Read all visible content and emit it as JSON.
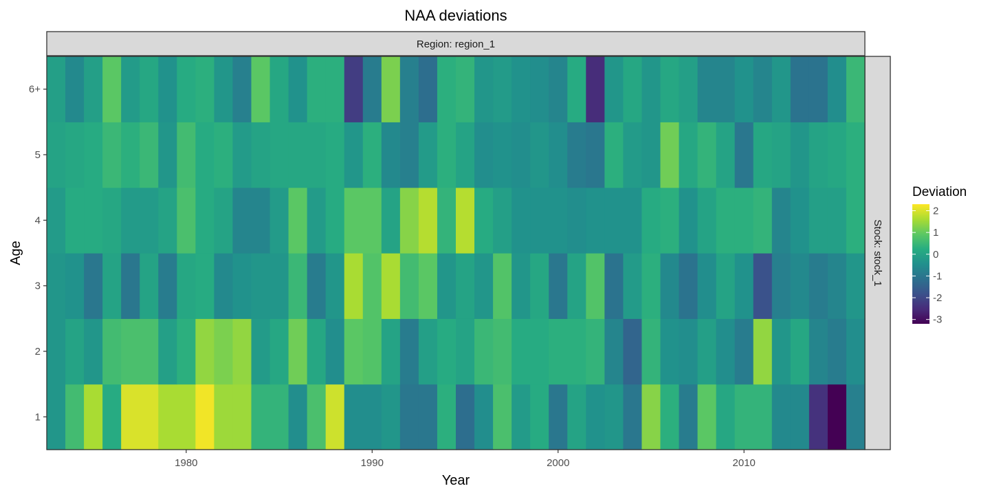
{
  "chart_data": {
    "type": "heatmap",
    "title": "NAA deviations",
    "xlabel": "Year",
    "ylabel": "Age",
    "facet_top": "Region: region_1",
    "facet_right": "Stock: stock_1",
    "legend_title": "Deviation",
    "legend_ticks": [
      2,
      1,
      0,
      -1,
      -2,
      -3
    ],
    "color_range": [
      -3.2,
      2.3
    ],
    "colormap": "viridis",
    "x_ticks": [
      1980,
      1990,
      2000,
      2010
    ],
    "y_categories": [
      "1",
      "2",
      "3",
      "4",
      "5",
      "6+"
    ],
    "years": [
      1973,
      1974,
      1975,
      1976,
      1977,
      1978,
      1979,
      1980,
      1981,
      1982,
      1983,
      1984,
      1985,
      1986,
      1987,
      1988,
      1989,
      1990,
      1991,
      1992,
      1993,
      1994,
      1995,
      1996,
      1997,
      1998,
      1999,
      2000,
      2001,
      2002,
      2003,
      2004,
      2005,
      2006,
      2007,
      2008,
      2009,
      2010,
      2011,
      2012,
      2013,
      2014,
      2015,
      2016
    ],
    "values": {
      "1": [
        -0.3,
        0.6,
        1.6,
        0.2,
        2.0,
        2.0,
        1.6,
        1.6,
        2.2,
        1.5,
        1.5,
        0.4,
        0.4,
        -0.5,
        0.7,
        1.9,
        -0.5,
        -0.5,
        -0.3,
        -1.0,
        -1.0,
        0.3,
        -1.2,
        -0.5,
        0.7,
        -0.2,
        0.2,
        -1.0,
        0.0,
        -0.4,
        -0.3,
        -1.0,
        1.3,
        0.3,
        -0.9,
        0.9,
        0.1,
        0.4,
        0.4,
        -0.6,
        -0.6,
        -2.4,
        -3.2,
        -0.8
      ],
      "2": [
        -0.3,
        0.0,
        -0.3,
        0.6,
        0.7,
        0.7,
        -0.1,
        0.3,
        1.4,
        1.2,
        1.4,
        -0.2,
        0.1,
        1.1,
        0.1,
        -0.5,
        0.9,
        0.8,
        0.0,
        -0.9,
        -0.1,
        0.2,
        0.0,
        0.5,
        0.6,
        0.2,
        0.2,
        0.3,
        0.3,
        0.4,
        -0.7,
        -1.4,
        0.4,
        -0.4,
        -0.5,
        -0.1,
        -0.5,
        -0.9,
        1.4,
        -0.3,
        0.1,
        -0.7,
        -0.9,
        -0.5
      ],
      "3": [
        -0.3,
        -0.4,
        -1.0,
        0.0,
        -1.0,
        0.0,
        -0.9,
        0.1,
        0.2,
        -0.6,
        -0.4,
        -0.3,
        -0.3,
        0.5,
        -0.9,
        -0.3,
        1.6,
        0.8,
        1.6,
        0.6,
        0.9,
        -0.3,
        0.0,
        -0.3,
        0.8,
        -0.3,
        0.1,
        -1.0,
        0.0,
        0.8,
        -1.1,
        -0.2,
        0.3,
        -0.6,
        -1.1,
        -0.5,
        0.0,
        -0.4,
        -1.8,
        -0.8,
        -0.6,
        -0.9,
        -0.7,
        -0.3
      ],
      "4": [
        -0.2,
        0.2,
        0.2,
        0.1,
        -0.2,
        -0.2,
        0.0,
        0.7,
        0.2,
        0.0,
        -0.7,
        -0.7,
        -0.2,
        0.9,
        -0.2,
        0.2,
        0.9,
        0.9,
        0.0,
        1.3,
        1.7,
        0.4,
        1.7,
        0.2,
        -0.1,
        -0.4,
        -0.4,
        -0.4,
        -0.5,
        -0.4,
        -0.4,
        -0.4,
        0.2,
        0.3,
        -0.4,
        0.0,
        0.3,
        0.3,
        0.4,
        -0.7,
        -0.4,
        -0.1,
        -0.1,
        0.3
      ],
      "5": [
        0.0,
        0.1,
        0.2,
        0.5,
        0.3,
        0.5,
        -0.3,
        0.6,
        0.2,
        0.3,
        -0.2,
        0.0,
        0.1,
        0.1,
        0.1,
        0.2,
        -0.3,
        0.3,
        -0.6,
        -0.8,
        -0.2,
        0.3,
        0.0,
        -0.5,
        -0.4,
        -0.5,
        -0.3,
        -0.5,
        -0.9,
        -1.0,
        0.3,
        -0.2,
        -0.3,
        1.1,
        0.1,
        0.4,
        0.0,
        -1.0,
        0.1,
        0.0,
        -0.3,
        0.0,
        0.1,
        0.3
      ],
      "6+": [
        -0.1,
        -0.6,
        -0.1,
        0.9,
        -0.2,
        0.1,
        -0.4,
        0.2,
        0.3,
        -0.3,
        -0.8,
        0.9,
        0.1,
        -0.4,
        0.3,
        0.3,
        -2.2,
        -0.9,
        1.2,
        -0.8,
        -1.2,
        0.3,
        0.4,
        -0.3,
        -0.2,
        -0.4,
        -0.5,
        -0.7,
        0.2,
        -2.5,
        -0.3,
        0.1,
        -0.3,
        0.1,
        -0.1,
        -0.7,
        -0.7,
        -0.4,
        -0.7,
        -0.3,
        -1.1,
        -1.1,
        -0.5,
        0.5
      ]
    }
  }
}
